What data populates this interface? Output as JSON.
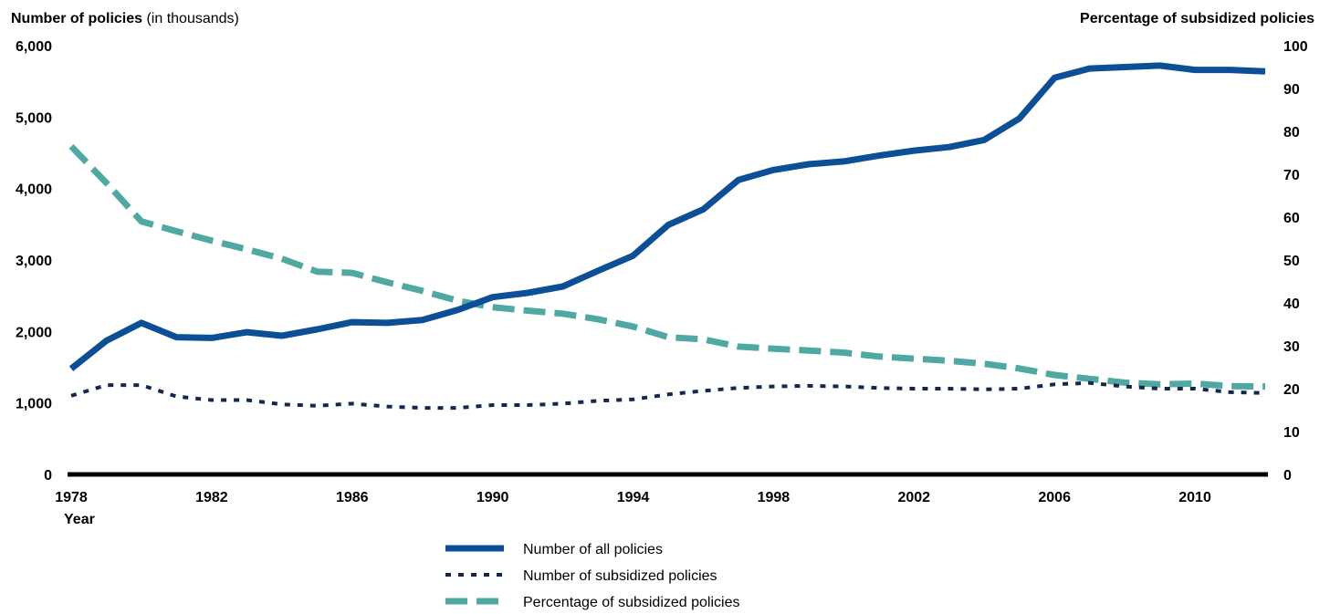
{
  "chart_data": {
    "type": "line",
    "y_left_title_bold": "Number of policies",
    "y_left_title_rest": " (in thousands)",
    "y_right_title": "Percentage of subsidized policies",
    "xlabel": "Year",
    "x": [
      1978,
      1979,
      1980,
      1981,
      1982,
      1983,
      1984,
      1985,
      1986,
      1987,
      1988,
      1989,
      1990,
      1991,
      1992,
      1993,
      1994,
      1995,
      1996,
      1997,
      1998,
      1999,
      2000,
      2001,
      2002,
      2003,
      2004,
      2005,
      2006,
      2007,
      2008,
      2009,
      2010,
      2011,
      2012
    ],
    "x_ticks": [
      1978,
      1982,
      1986,
      1990,
      1994,
      1998,
      2002,
      2006,
      2010
    ],
    "x_tick_labels": [
      "1978",
      "1982",
      "1986",
      "1990",
      "1994",
      "1998",
      "2002",
      "2006",
      "2010"
    ],
    "xlim": [
      1978,
      2012
    ],
    "y_left_ticks": [
      0,
      1000,
      2000,
      3000,
      4000,
      5000,
      6000
    ],
    "y_left_tick_labels": [
      "0",
      "1,000",
      "2,000",
      "3,000",
      "4,000",
      "5,000",
      "6,000"
    ],
    "y_left_lim": [
      0,
      6000
    ],
    "y_right_ticks": [
      0,
      10,
      20,
      30,
      40,
      50,
      60,
      70,
      80,
      90,
      100
    ],
    "y_right_tick_labels": [
      "0",
      "10",
      "20",
      "30",
      "40",
      "50",
      "60",
      "70",
      "80",
      "90",
      "100"
    ],
    "y_right_lim": [
      0,
      100
    ],
    "grid": false,
    "legend_position": "bottom-center",
    "series": [
      {
        "name": "Number of all policies",
        "axis": "left",
        "color": "#0c4f96",
        "style": "solid",
        "values": [
          1480,
          1870,
          2120,
          1920,
          1910,
          1990,
          1940,
          2030,
          2130,
          2120,
          2160,
          2300,
          2480,
          2540,
          2630,
          2850,
          3060,
          3490,
          3710,
          4120,
          4260,
          4340,
          4380,
          4460,
          4530,
          4580,
          4680,
          4980,
          5550,
          5680,
          5700,
          5720,
          5660,
          5660,
          5640
        ]
      },
      {
        "name": "Number of subsidized policies",
        "axis": "left",
        "color": "#14284d",
        "style": "dotted",
        "values": [
          1100,
          1250,
          1250,
          1090,
          1040,
          1040,
          980,
          960,
          990,
          950,
          930,
          930,
          970,
          970,
          990,
          1030,
          1050,
          1120,
          1170,
          1210,
          1230,
          1240,
          1230,
          1210,
          1200,
          1200,
          1190,
          1200,
          1260,
          1280,
          1230,
          1200,
          1200,
          1150,
          1140
        ]
      },
      {
        "name": "Percentage of subsidized policies",
        "axis": "right",
        "color": "#4fa8a2",
        "style": "dashed",
        "values": [
          76.5,
          68.0,
          59.0,
          56.7,
          54.5,
          52.5,
          50.3,
          47.3,
          47.0,
          44.8,
          42.8,
          40.5,
          39.0,
          38.2,
          37.5,
          36.2,
          34.5,
          32.0,
          31.5,
          29.8,
          29.3,
          28.9,
          28.4,
          27.5,
          27.0,
          26.5,
          25.8,
          24.7,
          23.2,
          22.3,
          21.4,
          21.0,
          21.2,
          20.6,
          20.5
        ]
      }
    ]
  }
}
